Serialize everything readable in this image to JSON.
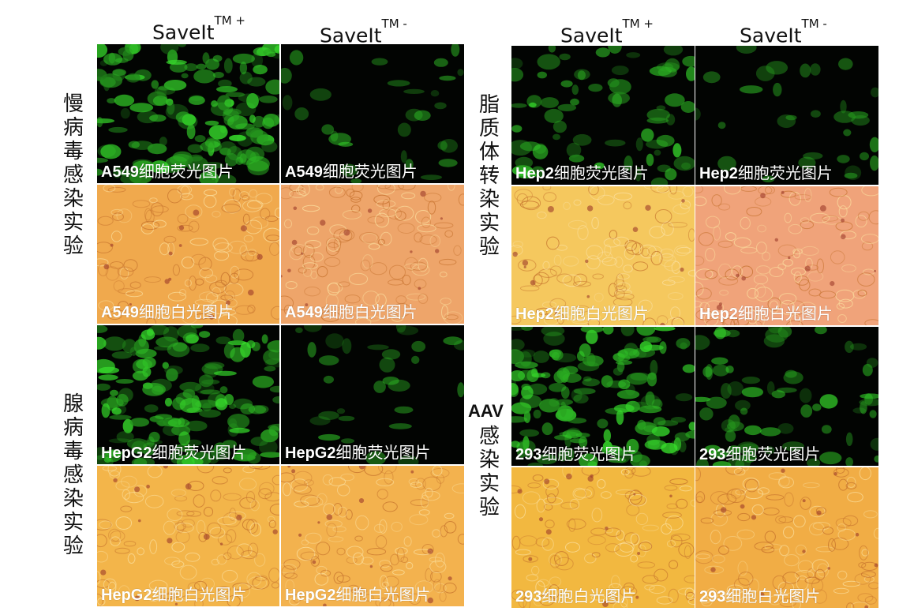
{
  "headers": {
    "left_plus": "SaveIt",
    "left_minus": "SaveIt",
    "right_plus": "SaveIt",
    "right_minus": "SaveIt",
    "tm_plus": "TM +",
    "tm_minus": "TM -"
  },
  "row_labels": {
    "lentivirus": [
      "慢",
      "病",
      "毒",
      "感",
      "染",
      "实",
      "验"
    ],
    "liposome": [
      "脂",
      "质",
      "体",
      "转",
      "染",
      "实",
      "验"
    ],
    "adenovirus": [
      "腺",
      "病",
      "毒",
      "感",
      "染",
      "实",
      "验"
    ],
    "aav_prefix": "AAV",
    "aav": [
      "感",
      "染",
      "实",
      "验"
    ]
  },
  "panels": [
    {
      "cell": "A549",
      "suffix": "细胞荧光图片",
      "kind": "fluor",
      "level": "high"
    },
    {
      "cell": "A549",
      "suffix": "细胞荧光图片",
      "kind": "fluor",
      "level": "low"
    },
    {
      "cell": "Hep2",
      "suffix": "细胞荧光图片",
      "kind": "fluor",
      "level": "mid"
    },
    {
      "cell": "Hep2",
      "suffix": "细胞荧光图片",
      "kind": "fluor",
      "level": "low"
    },
    {
      "cell": "A549",
      "suffix": "细胞白光图片",
      "kind": "bright",
      "tint": "#f0a94d"
    },
    {
      "cell": "A549",
      "suffix": "细胞白光图片",
      "kind": "bright",
      "tint": "#eea56a"
    },
    {
      "cell": "Hep2",
      "suffix": "细胞白光图片",
      "kind": "bright",
      "tint": "#f5c85e"
    },
    {
      "cell": "Hep2",
      "suffix": "细胞白光图片",
      "kind": "bright",
      "tint": "#f0a37a"
    },
    {
      "cell": "HepG2",
      "suffix": "细胞荧光图片",
      "kind": "fluor",
      "level": "high"
    },
    {
      "cell": "HepG2",
      "suffix": "细胞荧光图片",
      "kind": "fluor",
      "level": "low"
    },
    {
      "cell": "293",
      "suffix": "细胞荧光图片",
      "kind": "fluor",
      "level": "high"
    },
    {
      "cell": "293",
      "suffix": "细胞荧光图片",
      "kind": "fluor",
      "level": "mid"
    },
    {
      "cell": "HepG2",
      "suffix": "细胞白光图片",
      "kind": "bright",
      "tint": "#f3b54a"
    },
    {
      "cell": "HepG2",
      "suffix": "细胞白光图片",
      "kind": "bright",
      "tint": "#f3b24e"
    },
    {
      "cell": "293",
      "suffix": "细胞白光图片",
      "kind": "bright",
      "tint": "#f2b840"
    },
    {
      "cell": "293",
      "suffix": "细胞白光图片",
      "kind": "bright",
      "tint": "#f1ad45"
    }
  ]
}
